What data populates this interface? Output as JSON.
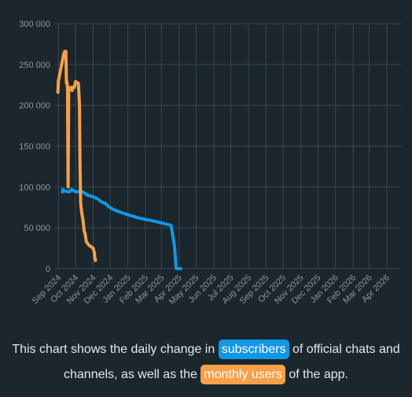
{
  "chart_data": {
    "type": "line",
    "y_ticks": [
      "0",
      "50 000",
      "100 000",
      "150 000",
      "200 000",
      "250 000",
      "300 000"
    ],
    "ylim": [
      0,
      300000
    ],
    "x_ticks": [
      "Sep 2024",
      "Oct 2024",
      "Nov 2024",
      "Dec 2024",
      "Jan 2025",
      "Feb 2025",
      "Mar 2025",
      "Apr 2025",
      "May 2025",
      "Jun 2025",
      "Jul 2025",
      "Aug 2025",
      "Sep 2025",
      "Oct 2025",
      "Nov 2025",
      "Dec 2025",
      "Jan 2026",
      "Feb 2026",
      "Mar 2026",
      "Apr 2026"
    ],
    "x_range": [
      "2024-08-26",
      "2026-04-26"
    ],
    "grid": true,
    "series": [
      {
        "key": "subscribers",
        "color": "#1297e5",
        "points": [
          [
            "2024-09-08",
            94000
          ],
          [
            "2024-09-09",
            97000
          ],
          [
            "2024-09-12",
            95000
          ],
          [
            "2024-09-20",
            94000
          ],
          [
            "2024-09-24",
            97000
          ],
          [
            "2024-09-28",
            95000
          ],
          [
            "2024-10-04",
            94000
          ],
          [
            "2024-10-10",
            95000
          ],
          [
            "2024-10-16",
            93000
          ],
          [
            "2024-10-22",
            90000
          ],
          [
            "2024-11-01",
            88000
          ],
          [
            "2024-11-10",
            85000
          ],
          [
            "2024-11-15",
            82000
          ],
          [
            "2024-11-22",
            80000
          ],
          [
            "2024-11-28",
            76000
          ],
          [
            "2024-12-05",
            73000
          ],
          [
            "2024-12-15",
            70000
          ],
          [
            "2025-01-01",
            66000
          ],
          [
            "2025-01-20",
            62000
          ],
          [
            "2025-02-10",
            59000
          ],
          [
            "2025-03-01",
            56000
          ],
          [
            "2025-03-18",
            53000
          ],
          [
            "2025-03-24",
            27000
          ],
          [
            "2025-03-27",
            0
          ],
          [
            "2025-04-04",
            0
          ]
        ]
      },
      {
        "key": "monthly_users",
        "color": "#f5a04a",
        "points": [
          [
            "2024-08-31",
            216000
          ],
          [
            "2024-09-01",
            230000
          ],
          [
            "2024-09-10",
            262000
          ],
          [
            "2024-09-12",
            266000
          ],
          [
            "2024-09-14",
            266000
          ],
          [
            "2024-09-15",
            227000
          ],
          [
            "2024-09-16",
            229000
          ],
          [
            "2024-09-17",
            220000
          ],
          [
            "2024-09-18",
            100000
          ],
          [
            "2024-09-19",
            222000
          ],
          [
            "2024-09-21",
            220000
          ],
          [
            "2024-09-23",
            222000
          ],
          [
            "2024-09-25",
            218000
          ],
          [
            "2024-09-26",
            222000
          ],
          [
            "2024-09-29",
            222000
          ],
          [
            "2024-10-01",
            229000
          ],
          [
            "2024-10-06",
            227000
          ],
          [
            "2024-10-08",
            200000
          ],
          [
            "2024-10-09",
            125000
          ],
          [
            "2024-10-10",
            80000
          ],
          [
            "2024-10-12",
            68000
          ],
          [
            "2024-10-14",
            60000
          ],
          [
            "2024-10-16",
            47000
          ],
          [
            "2024-10-18",
            42000
          ],
          [
            "2024-10-20",
            33000
          ],
          [
            "2024-10-24",
            29000
          ],
          [
            "2024-10-28",
            27000
          ],
          [
            "2024-11-01",
            25000
          ],
          [
            "2024-11-03",
            20000
          ],
          [
            "2024-11-04",
            13000
          ],
          [
            "2024-11-05",
            10000
          ]
        ]
      }
    ]
  },
  "caption": {
    "before": "This chart shows the daily change in",
    "subscribers": "subscribers",
    "middle": "of official chats and channels, as well as the",
    "monthly_users": "monthly users",
    "after": "of the app."
  }
}
